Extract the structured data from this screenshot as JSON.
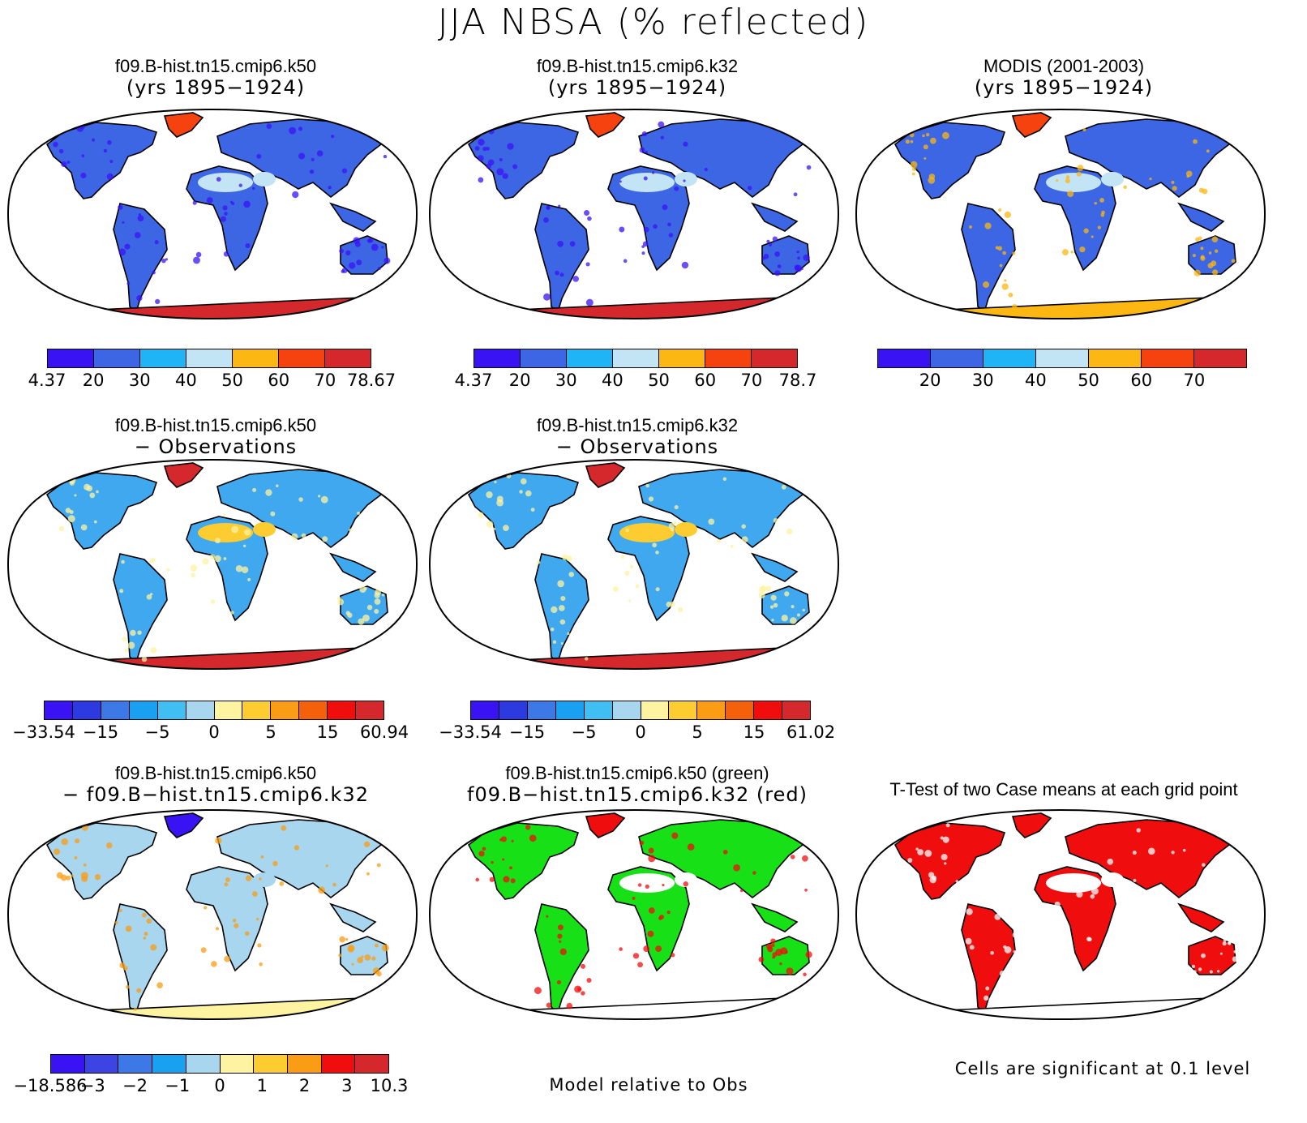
{
  "title": "JJA NBSA (% reflected)",
  "panels": [
    {
      "title": "f09.B-hist.tn15.cmip6.k50",
      "subtitle": "(yrs 1895−1924)",
      "scheme": "abs_k50"
    },
    {
      "title": "f09.B-hist.tn15.cmip6.k32",
      "subtitle": "(yrs 1895−1924)",
      "scheme": "abs_k32"
    },
    {
      "title": "MODIS (2001-2003)",
      "subtitle": "(yrs 1895−1924)",
      "scheme": "abs_modis"
    },
    {
      "title": "f09.B-hist.tn15.cmip6.k50",
      "subtitle": "− Observations",
      "scheme": "diff_k50"
    },
    {
      "title": "f09.B-hist.tn15.cmip6.k32",
      "subtitle": "− Observations",
      "scheme": "diff_k32"
    },
    {
      "title": "f09.B-hist.tn15.cmip6.k50",
      "subtitle": "− f09.B−hist.tn15.cmip6.k32",
      "scheme": "diff_models"
    },
    {
      "title": "f09.B-hist.tn15.cmip6.k50 (green)",
      "subtitle": "f09.B−hist.tn15.cmip6.k32 (red)",
      "scheme": "rel"
    },
    {
      "title": "T-Test of two Case means at each grid point",
      "subtitle": "",
      "scheme": "ttest"
    }
  ],
  "colorbars": [
    {
      "colors": [
        "#3a13f5",
        "#3c66e4",
        "#1fb4f6",
        "#c3e4f4",
        "#fcb712",
        "#f5420f",
        "#d5282c"
      ],
      "labels": [
        "4.37",
        "20",
        "30",
        "40",
        "50",
        "60",
        "70",
        "78.67"
      ]
    },
    {
      "colors": [
        "#3a13f5",
        "#3c66e4",
        "#1fb4f6",
        "#c3e4f4",
        "#fcb712",
        "#f5420f",
        "#d5282c"
      ],
      "labels": [
        "4.37",
        "20",
        "30",
        "40",
        "50",
        "60",
        "70",
        "78.7"
      ]
    },
    {
      "colors": [
        "#3a13f5",
        "#3c66e4",
        "#1fb4f6",
        "#c3e4f4",
        "#fcb712",
        "#f5420f",
        "#d5282c"
      ],
      "labels": [
        "20",
        "30",
        "40",
        "50",
        "60",
        "70"
      ]
    },
    {
      "colors": [
        "#3a13f5",
        "#2c3ae0",
        "#3d79e6",
        "#1aa0f0",
        "#40bff2",
        "#a8d6ee",
        "#fdf3a0",
        "#fccc30",
        "#fa9c14",
        "#f5600a",
        "#f00d0d",
        "#d5282c"
      ],
      "labels": [
        "−33.54",
        "−15",
        "−5",
        "0",
        "5",
        "15",
        "60.94"
      ]
    },
    {
      "colors": [
        "#3a13f5",
        "#2c3ae0",
        "#3d79e6",
        "#1aa0f0",
        "#40bff2",
        "#a8d6ee",
        "#fdf3a0",
        "#fccc30",
        "#fa9c14",
        "#f5600a",
        "#f00d0d",
        "#d5282c"
      ],
      "labels": [
        "−33.54",
        "−15",
        "−5",
        "0",
        "5",
        "15",
        "61.02"
      ]
    },
    {
      "colors": [
        "#3a13f5",
        "#3c44e4",
        "#3d79e6",
        "#1aa0f0",
        "#a8d6ee",
        "#fdf3a0",
        "#fccc30",
        "#fa9c14",
        "#f00d0d",
        "#d5282c"
      ],
      "labels": [
        "−18.586",
        "−3",
        "−2",
        "−1",
        "0",
        "1",
        "2",
        "3",
        "10.3"
      ]
    }
  ],
  "notes": {
    "rel": "Model relative to Obs",
    "ttest": "Cells are significant at 0.1 level"
  },
  "palette": {
    "land": {
      "abs_k50": "#3c66e4",
      "abs_k32": "#3c66e4",
      "abs_modis": "#3c66e4",
      "diff_k50": "#40a8ee",
      "diff_k32": "#40a8ee",
      "diff_models": "#a8d6ee",
      "rel": "#17e017",
      "ttest": "#f00d0d"
    },
    "ice": {
      "abs_k50": "#d5282c",
      "abs_k32": "#d5282c",
      "abs_modis": "#fcb712",
      "diff_k50": "#d5282c",
      "diff_k32": "#d5282c",
      "diff_models": "#fdf3a0",
      "rel": "#ffffff",
      "ttest": "#ffffff"
    },
    "greenland": {
      "abs_k50": "#f5420f",
      "abs_k32": "#f5420f",
      "abs_modis": "#f5420f",
      "diff_k50": "#d5282c",
      "diff_k32": "#d5282c",
      "diff_models": "#3a13f5",
      "rel": "#f00d0d",
      "ttest": "#f00d0d"
    },
    "desert": {
      "abs_k50": "#c3e4f4",
      "abs_k32": "#c3e4f4",
      "abs_modis": "#c3e4f4",
      "diff_k50": "#fccc30",
      "diff_k32": "#fccc30",
      "diff_models": "#a8d6ee",
      "rel": "#ffffff",
      "ttest": "#ffffff"
    },
    "accent": {
      "abs_k50": "#3a13f5",
      "abs_k32": "#3a13f5",
      "abs_modis": "#fcb712",
      "diff_k50": "#fdf3a0",
      "diff_k32": "#fdf3a0",
      "diff_models": "#fa9c14",
      "rel": "#f00d0d",
      "ttest": "#ffffff"
    }
  }
}
